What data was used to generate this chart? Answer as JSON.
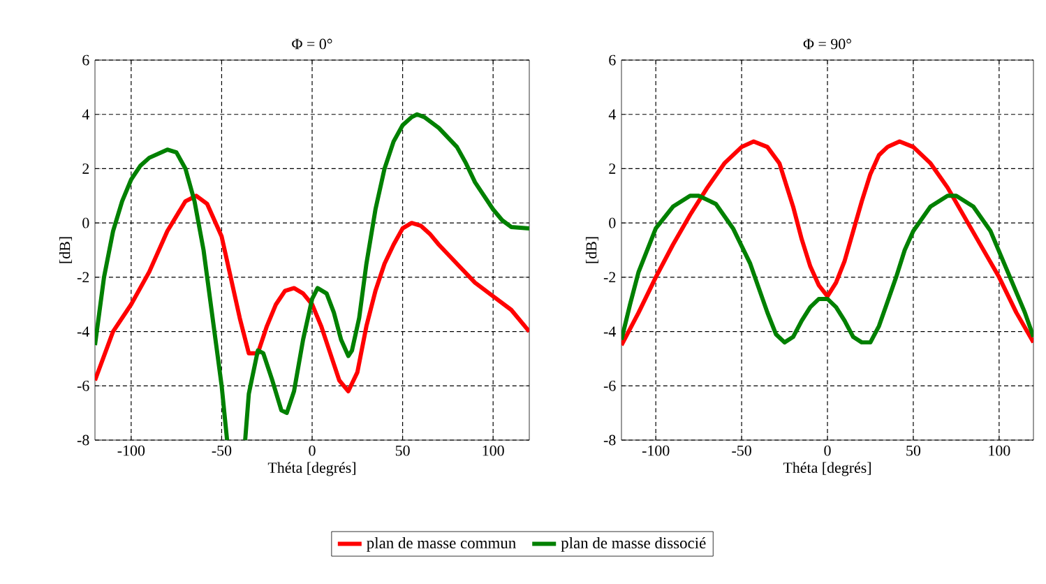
{
  "chart_data": [
    {
      "type": "line",
      "title": "Φ = 0°",
      "xlabel": "Théta [degrés]",
      "ylabel": "[dB]",
      "xlim": [
        -120,
        120
      ],
      "ylim": [
        -8,
        6
      ],
      "xticks": [
        -100,
        -50,
        0,
        50,
        100
      ],
      "yticks": [
        -8,
        -6,
        -4,
        -2,
        0,
        2,
        4,
        6
      ],
      "grid": true,
      "legend": "bottom",
      "series": [
        {
          "name": "plan de masse commun",
          "color": "#ff0000",
          "x": [
            -120,
            -110,
            -100,
            -90,
            -80,
            -70,
            -64,
            -58,
            -50,
            -45,
            -40,
            -35,
            -30,
            -25,
            -20,
            -15,
            -10,
            -5,
            0,
            5,
            10,
            15,
            20,
            25,
            30,
            35,
            40,
            45,
            50,
            55,
            60,
            65,
            70,
            80,
            90,
            100,
            110,
            120
          ],
          "values": [
            -5.8,
            -4,
            -3,
            -1.8,
            -0.3,
            0.8,
            1.0,
            0.7,
            -0.5,
            -2,
            -3.5,
            -4.8,
            -4.8,
            -3.8,
            -3,
            -2.5,
            -2.4,
            -2.6,
            -3,
            -3.8,
            -4.8,
            -5.8,
            -6.2,
            -5.5,
            -3.8,
            -2.5,
            -1.5,
            -0.8,
            -0.2,
            0,
            -0.1,
            -0.4,
            -0.8,
            -1.5,
            -2.2,
            -2.7,
            -3.2,
            -4
          ]
        },
        {
          "name": "plan de masse dissocié",
          "color": "#008000",
          "x": [
            -120,
            -115,
            -110,
            -105,
            -100,
            -95,
            -90,
            -80,
            -75,
            -70,
            -65,
            -60,
            -55,
            -50,
            -47,
            -42,
            -37,
            -35,
            -30,
            -27,
            -22,
            -17,
            -14,
            -10,
            -5,
            0,
            3,
            8,
            12,
            16,
            20,
            22,
            26,
            30,
            35,
            40,
            45,
            50,
            55,
            58,
            62,
            70,
            80,
            85,
            90,
            100,
            105,
            110,
            120
          ],
          "values": [
            -4.5,
            -2,
            -0.3,
            0.8,
            1.6,
            2.1,
            2.4,
            2.7,
            2.6,
            2.0,
            0.8,
            -1.0,
            -3.5,
            -6,
            -8,
            null,
            -8,
            -6.3,
            -4.7,
            -4.8,
            -5.8,
            -6.9,
            -7.0,
            -6.2,
            -4.3,
            -2.8,
            -2.4,
            -2.6,
            -3.3,
            -4.3,
            -4.9,
            -4.7,
            -3.5,
            -1.5,
            0.5,
            2,
            3.0,
            3.6,
            3.9,
            4.0,
            3.9,
            3.5,
            2.8,
            2.2,
            1.5,
            0.5,
            0.1,
            -0.15,
            -0.2
          ]
        }
      ]
    },
    {
      "type": "line",
      "title": "Φ = 90°",
      "xlabel": "Théta [degrés]",
      "ylabel": "[dB]",
      "xlim": [
        -120,
        120
      ],
      "ylim": [
        -8,
        6
      ],
      "xticks": [
        -100,
        -50,
        0,
        50,
        100
      ],
      "yticks": [
        -8,
        -6,
        -4,
        -2,
        0,
        2,
        4,
        6
      ],
      "grid": true,
      "series": [
        {
          "color": "#ff0000",
          "x": [
            -120,
            -110,
            -100,
            -90,
            -80,
            -70,
            -60,
            -50,
            -43,
            -35,
            -28,
            -20,
            -15,
            -10,
            -5,
            0,
            5,
            10,
            15,
            20,
            25,
            30,
            35,
            42,
            50,
            60,
            70,
            80,
            90,
            100,
            110,
            120
          ],
          "values": [
            -4.5,
            -3.3,
            -2.0,
            -0.8,
            0.3,
            1.3,
            2.2,
            2.8,
            3.0,
            2.8,
            2.2,
            0.6,
            -0.6,
            -1.6,
            -2.3,
            -2.7,
            -2.2,
            -1.4,
            -0.3,
            0.8,
            1.8,
            2.5,
            2.8,
            3.0,
            2.8,
            2.2,
            1.3,
            0.2,
            -0.9,
            -2.0,
            -3.3,
            -4.4
          ]
        },
        {
          "color": "#008000",
          "x": [
            -120,
            -115,
            -110,
            -100,
            -90,
            -80,
            -75,
            -65,
            -55,
            -45,
            -35,
            -30,
            -25,
            -20,
            -15,
            -10,
            -5,
            0,
            5,
            10,
            15,
            20,
            25,
            30,
            40,
            45,
            50,
            60,
            70,
            75,
            85,
            95,
            105,
            115,
            120
          ],
          "values": [
            -4.3,
            -3,
            -1.8,
            -0.2,
            0.6,
            1.0,
            1.0,
            0.7,
            -0.2,
            -1.5,
            -3.3,
            -4.1,
            -4.4,
            -4.2,
            -3.6,
            -3.1,
            -2.8,
            -2.8,
            -3.1,
            -3.6,
            -4.2,
            -4.4,
            -4.4,
            -3.8,
            -2.0,
            -1.0,
            -0.3,
            0.6,
            1.0,
            1.0,
            0.6,
            -0.3,
            -1.8,
            -3.3,
            -4.2
          ]
        }
      ]
    }
  ]
}
